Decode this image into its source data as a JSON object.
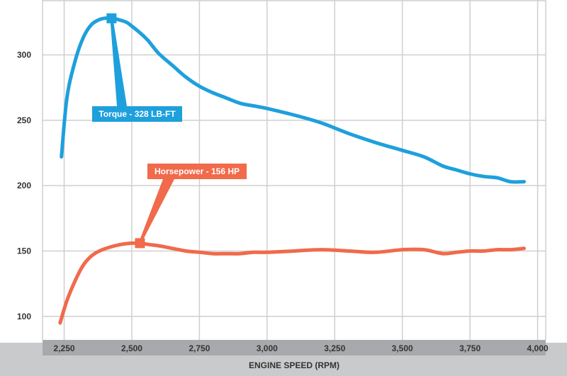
{
  "chart_data": {
    "type": "line",
    "title": "",
    "xlabel": "ENGINE SPEED (RPM)",
    "ylabel": "",
    "xlim": [
      2170,
      4030
    ],
    "ylim": [
      82,
      342
    ],
    "x_ticks": [
      2250,
      2500,
      2750,
      3000,
      3250,
      3500,
      3750,
      4000
    ],
    "x_tick_labels": [
      "2,250",
      "2,500",
      "2,750",
      "3,000",
      "3,250",
      "3,500",
      "3,750",
      "4,000"
    ],
    "y_ticks": [
      100,
      150,
      200,
      250,
      300
    ],
    "y_tick_labels": [
      "100",
      "150",
      "200",
      "250",
      "300"
    ],
    "grid": true,
    "series": [
      {
        "name": "Torque",
        "color": "#1ea0dc",
        "x": [
          2240,
          2260,
          2290,
          2320,
          2350,
          2380,
          2400,
          2430,
          2450,
          2480,
          2500,
          2530,
          2560,
          2600,
          2650,
          2700,
          2750,
          2800,
          2850,
          2900,
          2950,
          3000,
          3100,
          3200,
          3300,
          3400,
          3500,
          3580,
          3650,
          3700,
          3750,
          3800,
          3850,
          3900,
          3950
        ],
        "values": [
          222,
          267,
          295,
          313,
          323,
          327,
          328,
          328,
          327,
          325,
          322,
          317,
          311,
          301,
          292,
          283,
          276,
          271,
          267,
          263,
          261,
          259,
          254,
          248,
          240,
          233,
          227,
          222,
          215,
          212,
          209,
          207,
          206,
          203,
          203
        ]
      },
      {
        "name": "Horsepower",
        "color": "#f06a4b",
        "x": [
          2235,
          2260,
          2290,
          2320,
          2350,
          2380,
          2420,
          2460,
          2500,
          2530,
          2560,
          2600,
          2650,
          2700,
          2750,
          2800,
          2850,
          2900,
          2950,
          3000,
          3100,
          3200,
          3300,
          3400,
          3500,
          3580,
          3650,
          3700,
          3750,
          3800,
          3850,
          3900,
          3950
        ],
        "values": [
          95,
          112,
          127,
          139,
          146,
          150,
          153,
          155,
          156,
          156,
          155,
          154,
          152,
          150,
          149,
          148,
          148,
          148,
          149,
          149,
          150,
          151,
          150,
          149,
          151,
          151,
          148,
          149,
          150,
          150,
          151,
          151,
          152
        ]
      }
    ],
    "annotations": [
      {
        "text": "Torque - 328 LB-FT",
        "series": "Torque",
        "x": 2425,
        "y": 328
      },
      {
        "text": "Horsepower - 156 HP",
        "series": "Horsepower",
        "x": 2530,
        "y": 156
      }
    ]
  }
}
